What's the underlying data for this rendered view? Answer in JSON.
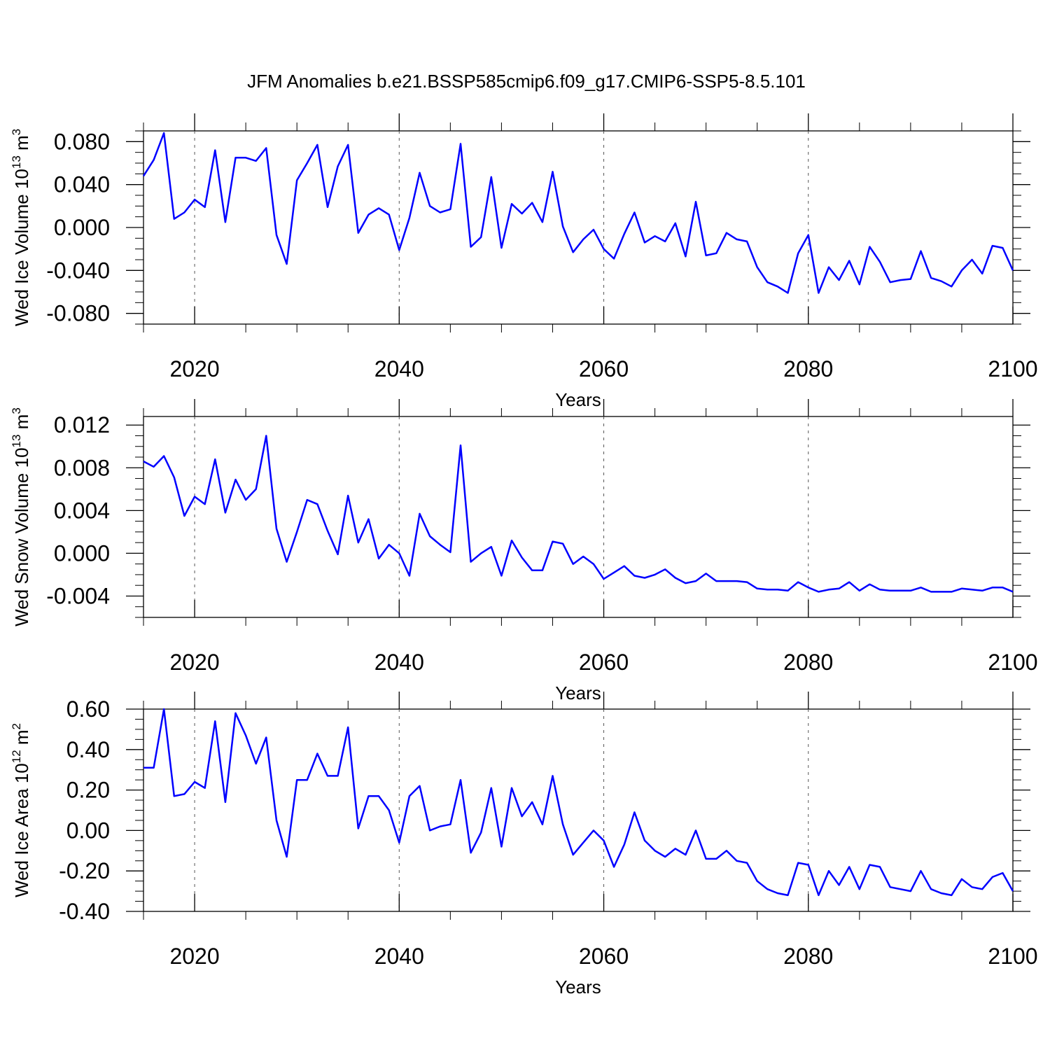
{
  "title": "JFM Anomalies b.e21.BSSP585cmip6.f09_g17.CMIP6-SSP5-8.5.101",
  "colors": {
    "line": "#0000ff",
    "axes": "#000000",
    "grid": "#555555"
  },
  "chart_data": [
    {
      "type": "line",
      "ylabel": "Wed Ice Volume 10",
      "ylabel_exp": "13",
      "ylabel_unit": " m",
      "ylabel_unit_exp": "3",
      "xlabel": "Years",
      "xlim": [
        2015,
        2100
      ],
      "ylim": [
        -0.09,
        0.09
      ],
      "x_ticks": [
        "2020",
        "2040",
        "2060",
        "2080",
        "2100"
      ],
      "y_ticks": [
        "0.080",
        "0.040",
        "0.000",
        "-0.040",
        "-0.080"
      ],
      "grid": "dashed vertical at major x ticks",
      "x": [
        2015,
        2016,
        2017,
        2018,
        2019,
        2020,
        2021,
        2022,
        2023,
        2024,
        2025,
        2026,
        2027,
        2028,
        2029,
        2030,
        2031,
        2032,
        2033,
        2034,
        2035,
        2036,
        2037,
        2038,
        2039,
        2040,
        2041,
        2042,
        2043,
        2044,
        2045,
        2046,
        2047,
        2048,
        2049,
        2050,
        2051,
        2052,
        2053,
        2054,
        2055,
        2056,
        2057,
        2058,
        2059,
        2060,
        2061,
        2062,
        2063,
        2064,
        2065,
        2066,
        2067,
        2068,
        2069,
        2070,
        2071,
        2072,
        2073,
        2074,
        2075,
        2076,
        2077,
        2078,
        2079,
        2080,
        2081,
        2082,
        2083,
        2084,
        2085,
        2086,
        2087,
        2088,
        2089,
        2090,
        2091,
        2092,
        2093,
        2094,
        2095,
        2096,
        2097,
        2098,
        2099,
        2100
      ],
      "values": [
        0.048,
        0.063,
        0.088,
        0.008,
        0.014,
        0.026,
        0.019,
        0.072,
        0.005,
        0.065,
        0.065,
        0.062,
        0.074,
        -0.007,
        -0.034,
        0.044,
        0.06,
        0.077,
        0.019,
        0.057,
        0.077,
        -0.005,
        0.012,
        0.018,
        0.012,
        -0.021,
        0.009,
        0.051,
        0.02,
        0.014,
        0.017,
        0.078,
        -0.018,
        -0.009,
        0.047,
        -0.019,
        0.022,
        0.013,
        0.023,
        0.005,
        0.052,
        0.001,
        -0.023,
        -0.011,
        -0.002,
        -0.02,
        -0.029,
        -0.006,
        0.014,
        -0.014,
        -0.008,
        -0.013,
        0.004,
        -0.027,
        0.024,
        -0.026,
        -0.024,
        -0.005,
        -0.011,
        -0.013,
        -0.037,
        -0.051,
        -0.055,
        -0.061,
        -0.024,
        -0.007,
        -0.061,
        -0.037,
        -0.049,
        -0.031,
        -0.053,
        -0.018,
        -0.032,
        -0.051,
        -0.049,
        -0.048,
        -0.022,
        -0.047,
        -0.05,
        -0.055,
        -0.04,
        -0.03,
        -0.043,
        -0.017,
        -0.019,
        -0.04
      ]
    },
    {
      "type": "line",
      "ylabel": "Wed Snow Volume 10",
      "ylabel_exp": "13",
      "ylabel_unit": " m",
      "ylabel_unit_exp": "3",
      "xlabel": "Years",
      "xlim": [
        2015,
        2100
      ],
      "ylim": [
        -0.006,
        0.0128
      ],
      "x_ticks": [
        "2020",
        "2040",
        "2060",
        "2080",
        "2100"
      ],
      "y_ticks": [
        "0.012",
        "0.008",
        "0.004",
        "0.000",
        "-0.004"
      ],
      "grid": "dashed vertical at major x ticks",
      "x": [
        2015,
        2016,
        2017,
        2018,
        2019,
        2020,
        2021,
        2022,
        2023,
        2024,
        2025,
        2026,
        2027,
        2028,
        2029,
        2030,
        2031,
        2032,
        2033,
        2034,
        2035,
        2036,
        2037,
        2038,
        2039,
        2040,
        2041,
        2042,
        2043,
        2044,
        2045,
        2046,
        2047,
        2048,
        2049,
        2050,
        2051,
        2052,
        2053,
        2054,
        2055,
        2056,
        2057,
        2058,
        2059,
        2060,
        2061,
        2062,
        2063,
        2064,
        2065,
        2066,
        2067,
        2068,
        2069,
        2070,
        2071,
        2072,
        2073,
        2074,
        2075,
        2076,
        2077,
        2078,
        2079,
        2080,
        2081,
        2082,
        2083,
        2084,
        2085,
        2086,
        2087,
        2088,
        2089,
        2090,
        2091,
        2092,
        2093,
        2094,
        2095,
        2096,
        2097,
        2098,
        2099,
        2100
      ],
      "values": [
        0.0086,
        0.0081,
        0.0091,
        0.0071,
        0.0035,
        0.0053,
        0.0046,
        0.0088,
        0.0038,
        0.0069,
        0.005,
        0.006,
        0.011,
        0.0023,
        -0.0008,
        0.002,
        0.005,
        0.0046,
        0.0021,
        -0.0001,
        0.0054,
        0.001,
        0.0032,
        -0.0005,
        0.0008,
        0.0,
        -0.0021,
        0.0037,
        0.0016,
        0.0008,
        0.0001,
        0.0101,
        -0.0008,
        0.0,
        0.0006,
        -0.0021,
        0.0012,
        -0.0004,
        -0.0016,
        -0.0016,
        0.0011,
        0.0009,
        -0.001,
        -0.0003,
        -0.001,
        -0.0024,
        -0.0018,
        -0.0012,
        -0.0021,
        -0.0023,
        -0.002,
        -0.0015,
        -0.0023,
        -0.0028,
        -0.0026,
        -0.0019,
        -0.0026,
        -0.0026,
        -0.0026,
        -0.0027,
        -0.0033,
        -0.0034,
        -0.0034,
        -0.0035,
        -0.0027,
        -0.0032,
        -0.0036,
        -0.0034,
        -0.0033,
        -0.0027,
        -0.0035,
        -0.0029,
        -0.0034,
        -0.0035,
        -0.0035,
        -0.0035,
        -0.0032,
        -0.0036,
        -0.0036,
        -0.0036,
        -0.0033,
        -0.0034,
        -0.0035,
        -0.0032,
        -0.0032,
        -0.0036
      ]
    },
    {
      "type": "line",
      "ylabel": "Wed Ice Area 10",
      "ylabel_exp": "12",
      "ylabel_unit": " m",
      "ylabel_unit_exp": "2",
      "xlabel": "Years",
      "xlim": [
        2015,
        2100
      ],
      "ylim": [
        -0.4,
        0.6
      ],
      "x_ticks": [
        "2020",
        "2040",
        "2060",
        "2080",
        "2100"
      ],
      "y_ticks": [
        "0.60",
        "0.40",
        "0.20",
        "0.00",
        "-0.20",
        "-0.40"
      ],
      "grid": "dashed vertical at major x ticks",
      "x": [
        2015,
        2016,
        2017,
        2018,
        2019,
        2020,
        2021,
        2022,
        2023,
        2024,
        2025,
        2026,
        2027,
        2028,
        2029,
        2030,
        2031,
        2032,
        2033,
        2034,
        2035,
        2036,
        2037,
        2038,
        2039,
        2040,
        2041,
        2042,
        2043,
        2044,
        2045,
        2046,
        2047,
        2048,
        2049,
        2050,
        2051,
        2052,
        2053,
        2054,
        2055,
        2056,
        2057,
        2058,
        2059,
        2060,
        2061,
        2062,
        2063,
        2064,
        2065,
        2066,
        2067,
        2068,
        2069,
        2070,
        2071,
        2072,
        2073,
        2074,
        2075,
        2076,
        2077,
        2078,
        2079,
        2080,
        2081,
        2082,
        2083,
        2084,
        2085,
        2086,
        2087,
        2088,
        2089,
        2090,
        2091,
        2092,
        2093,
        2094,
        2095,
        2096,
        2097,
        2098,
        2099,
        2100
      ],
      "values": [
        0.31,
        0.31,
        0.6,
        0.17,
        0.18,
        0.24,
        0.21,
        0.54,
        0.14,
        0.58,
        0.47,
        0.33,
        0.46,
        0.05,
        -0.13,
        0.25,
        0.25,
        0.38,
        0.27,
        0.27,
        0.51,
        0.01,
        0.17,
        0.17,
        0.1,
        -0.06,
        0.17,
        0.22,
        0.0,
        0.02,
        0.03,
        0.25,
        -0.11,
        -0.01,
        0.21,
        -0.08,
        0.21,
        0.07,
        0.14,
        0.03,
        0.27,
        0.03,
        -0.12,
        -0.06,
        0.0,
        -0.05,
        -0.18,
        -0.07,
        0.09,
        -0.05,
        -0.1,
        -0.13,
        -0.09,
        -0.12,
        0.0,
        -0.14,
        -0.14,
        -0.1,
        -0.15,
        -0.16,
        -0.25,
        -0.29,
        -0.31,
        -0.32,
        -0.16,
        -0.17,
        -0.32,
        -0.2,
        -0.27,
        -0.18,
        -0.29,
        -0.17,
        -0.18,
        -0.28,
        -0.29,
        -0.3,
        -0.2,
        -0.29,
        -0.31,
        -0.32,
        -0.24,
        -0.28,
        -0.29,
        -0.23,
        -0.21,
        -0.3
      ]
    }
  ]
}
